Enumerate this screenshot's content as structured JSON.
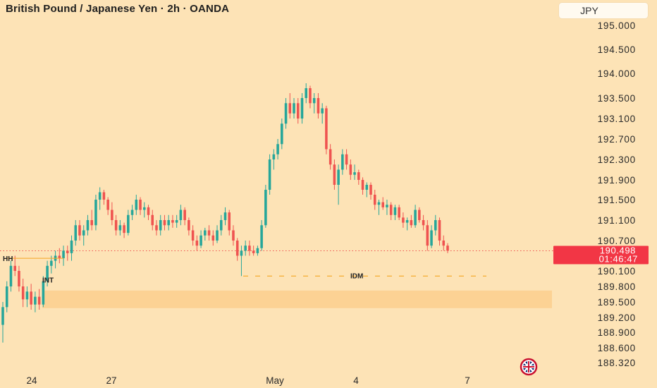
{
  "header": {
    "title": "British Pound / Japanese Yen · 2h · OANDA",
    "currency_label": "JPY"
  },
  "colors": {
    "background": "#fde3b6",
    "up": "#26a69a",
    "down": "#ef5350",
    "badge": "#f23645",
    "zone": "#fccf8e",
    "idm_line": "#f5a623"
  },
  "icons": [
    "uk-flag-icon"
  ],
  "current": {
    "price": "190.498",
    "countdown": "01:46:47",
    "value": 190.498
  },
  "annotations": {
    "hh": {
      "label": "HH",
      "y": 190.35
    },
    "int": {
      "label": "INT",
      "y": 189.85
    },
    "idm": {
      "label": "IDM",
      "y": 190.0
    },
    "zone": {
      "low": 189.38,
      "high": 189.72
    }
  },
  "chart_data": {
    "type": "candlestick",
    "title": "British Pound / Japanese Yen · 2h · OANDA",
    "y_ticks": [
      "195.000",
      "194.500",
      "194.000",
      "193.500",
      "193.100",
      "192.700",
      "192.300",
      "191.900",
      "191.500",
      "191.100",
      "190.700",
      "190.100",
      "189.800",
      "189.500",
      "189.200",
      "188.900",
      "188.600",
      "188.320"
    ],
    "x_ticks": [
      "24",
      "27",
      "May",
      "4",
      "7"
    ],
    "grid": false,
    "series": [
      {
        "candles": [
          [
            189.05,
            189.5,
            188.7,
            189.4
          ],
          [
            189.4,
            189.9,
            189.3,
            189.8
          ],
          [
            189.8,
            190.3,
            189.7,
            190.2
          ],
          [
            190.2,
            190.4,
            190.0,
            190.1
          ],
          [
            190.1,
            190.2,
            189.7,
            189.8
          ],
          [
            189.8,
            189.95,
            189.4,
            189.55
          ],
          [
            189.55,
            189.8,
            189.4,
            189.7
          ],
          [
            189.7,
            189.85,
            189.35,
            189.45
          ],
          [
            189.45,
            189.7,
            189.3,
            189.6
          ],
          [
            189.6,
            189.75,
            189.35,
            189.45
          ],
          [
            189.45,
            190.0,
            189.4,
            189.9
          ],
          [
            189.9,
            190.3,
            189.8,
            190.2
          ],
          [
            190.2,
            190.4,
            190.05,
            190.3
          ],
          [
            190.3,
            190.5,
            190.15,
            190.4
          ],
          [
            190.4,
            190.55,
            190.25,
            190.35
          ],
          [
            190.35,
            190.6,
            190.2,
            190.5
          ],
          [
            190.5,
            190.6,
            190.3,
            190.45
          ],
          [
            190.45,
            190.8,
            190.3,
            190.7
          ],
          [
            190.7,
            191.1,
            190.6,
            191.0
          ],
          [
            191.0,
            191.1,
            190.7,
            190.8
          ],
          [
            190.8,
            191.0,
            190.6,
            190.9
          ],
          [
            190.9,
            191.2,
            190.8,
            191.1
          ],
          [
            191.1,
            191.3,
            190.9,
            191.0
          ],
          [
            191.0,
            191.6,
            190.9,
            191.5
          ],
          [
            191.5,
            191.75,
            191.3,
            191.65
          ],
          [
            191.65,
            191.7,
            191.4,
            191.5
          ],
          [
            191.5,
            191.55,
            191.2,
            191.3
          ],
          [
            191.3,
            191.45,
            191.0,
            191.1
          ],
          [
            191.1,
            191.2,
            190.8,
            190.9
          ],
          [
            190.9,
            191.1,
            190.8,
            191.0
          ],
          [
            191.0,
            191.05,
            190.75,
            190.85
          ],
          [
            190.85,
            191.3,
            190.8,
            191.2
          ],
          [
            191.2,
            191.4,
            191.1,
            191.3
          ],
          [
            191.3,
            191.6,
            191.2,
            191.5
          ],
          [
            191.5,
            191.55,
            191.2,
            191.3
          ],
          [
            191.3,
            191.45,
            191.15,
            191.35
          ],
          [
            191.35,
            191.4,
            191.1,
            191.2
          ],
          [
            191.2,
            191.3,
            190.9,
            191.0
          ],
          [
            191.0,
            191.1,
            190.8,
            190.9
          ],
          [
            190.9,
            191.2,
            190.8,
            191.1
          ],
          [
            191.1,
            191.2,
            190.9,
            191.0
          ],
          [
            191.0,
            191.2,
            190.9,
            191.1
          ],
          [
            191.1,
            191.2,
            190.95,
            191.05
          ],
          [
            191.05,
            191.2,
            190.95,
            191.1
          ],
          [
            191.1,
            191.4,
            191.0,
            191.3
          ],
          [
            191.3,
            191.35,
            191.0,
            191.1
          ],
          [
            191.1,
            191.15,
            190.8,
            190.9
          ],
          [
            190.9,
            191.0,
            190.6,
            190.7
          ],
          [
            190.7,
            190.8,
            190.5,
            190.6
          ],
          [
            190.6,
            190.9,
            190.55,
            190.8
          ],
          [
            190.8,
            190.95,
            190.7,
            190.9
          ],
          [
            190.9,
            191.0,
            190.7,
            190.8
          ],
          [
            190.8,
            190.9,
            190.6,
            190.7
          ],
          [
            190.7,
            191.0,
            190.65,
            190.9
          ],
          [
            190.9,
            191.2,
            190.8,
            191.1
          ],
          [
            191.1,
            191.35,
            191.0,
            191.25
          ],
          [
            191.25,
            191.3,
            190.8,
            190.9
          ],
          [
            190.9,
            191.0,
            190.6,
            190.7
          ],
          [
            190.7,
            190.75,
            190.3,
            190.4
          ],
          [
            190.4,
            190.6,
            190.0,
            190.5
          ],
          [
            190.5,
            190.7,
            190.4,
            190.6
          ],
          [
            190.6,
            190.7,
            190.4,
            190.5
          ],
          [
            190.5,
            190.6,
            190.4,
            190.45
          ],
          [
            190.45,
            190.6,
            190.4,
            190.55
          ],
          [
            190.55,
            191.1,
            190.5,
            191.0
          ],
          [
            191.0,
            191.8,
            190.95,
            191.7
          ],
          [
            191.7,
            192.4,
            191.6,
            192.3
          ],
          [
            192.3,
            192.5,
            192.1,
            192.4
          ],
          [
            192.4,
            192.7,
            192.3,
            192.6
          ],
          [
            192.6,
            193.1,
            192.5,
            193.0
          ],
          [
            193.0,
            193.5,
            192.9,
            193.4
          ],
          [
            193.4,
            193.6,
            193.1,
            193.2
          ],
          [
            193.2,
            193.5,
            193.1,
            193.4
          ],
          [
            193.4,
            193.5,
            193.0,
            193.1
          ],
          [
            193.1,
            193.6,
            193.0,
            193.5
          ],
          [
            193.5,
            193.8,
            193.4,
            193.7
          ],
          [
            193.7,
            193.75,
            193.3,
            193.4
          ],
          [
            193.4,
            193.6,
            193.2,
            193.5
          ],
          [
            193.5,
            193.6,
            193.1,
            193.2
          ],
          [
            193.2,
            193.4,
            193.0,
            193.3
          ],
          [
            193.3,
            193.35,
            192.4,
            192.5
          ],
          [
            192.5,
            192.6,
            192.1,
            192.2
          ],
          [
            192.2,
            192.3,
            191.7,
            191.8
          ],
          [
            191.8,
            192.2,
            191.4,
            192.1
          ],
          [
            192.1,
            192.5,
            192.0,
            192.4
          ],
          [
            192.4,
            192.5,
            192.1,
            192.2
          ],
          [
            192.2,
            192.3,
            191.9,
            192.0
          ],
          [
            192.0,
            192.2,
            191.9,
            192.05
          ],
          [
            192.05,
            192.1,
            191.8,
            191.9
          ],
          [
            191.9,
            191.95,
            191.6,
            191.7
          ],
          [
            191.7,
            191.85,
            191.55,
            191.8
          ],
          [
            191.8,
            191.85,
            191.5,
            191.6
          ],
          [
            191.6,
            191.7,
            191.3,
            191.4
          ],
          [
            191.4,
            191.5,
            191.2,
            191.45
          ],
          [
            191.45,
            191.55,
            191.3,
            191.35
          ],
          [
            191.35,
            191.5,
            191.2,
            191.4
          ],
          [
            191.4,
            191.45,
            191.1,
            191.2
          ],
          [
            191.2,
            191.4,
            191.1,
            191.35
          ],
          [
            191.35,
            191.4,
            191.1,
            191.15
          ],
          [
            191.15,
            191.25,
            190.95,
            191.05
          ],
          [
            191.05,
            191.15,
            190.9,
            191.1
          ],
          [
            191.1,
            191.2,
            190.95,
            191.0
          ],
          [
            191.0,
            191.4,
            190.95,
            191.3
          ],
          [
            191.3,
            191.35,
            191.05,
            191.1
          ],
          [
            191.1,
            191.2,
            190.9,
            191.0
          ],
          [
            191.0,
            191.1,
            190.5,
            190.6
          ],
          [
            190.6,
            191.0,
            190.55,
            190.9
          ],
          [
            190.9,
            191.2,
            190.8,
            191.1
          ],
          [
            191.1,
            191.15,
            190.6,
            190.7
          ],
          [
            190.7,
            190.8,
            190.5,
            190.6
          ],
          [
            190.6,
            190.65,
            190.45,
            190.5
          ]
        ]
      }
    ]
  }
}
